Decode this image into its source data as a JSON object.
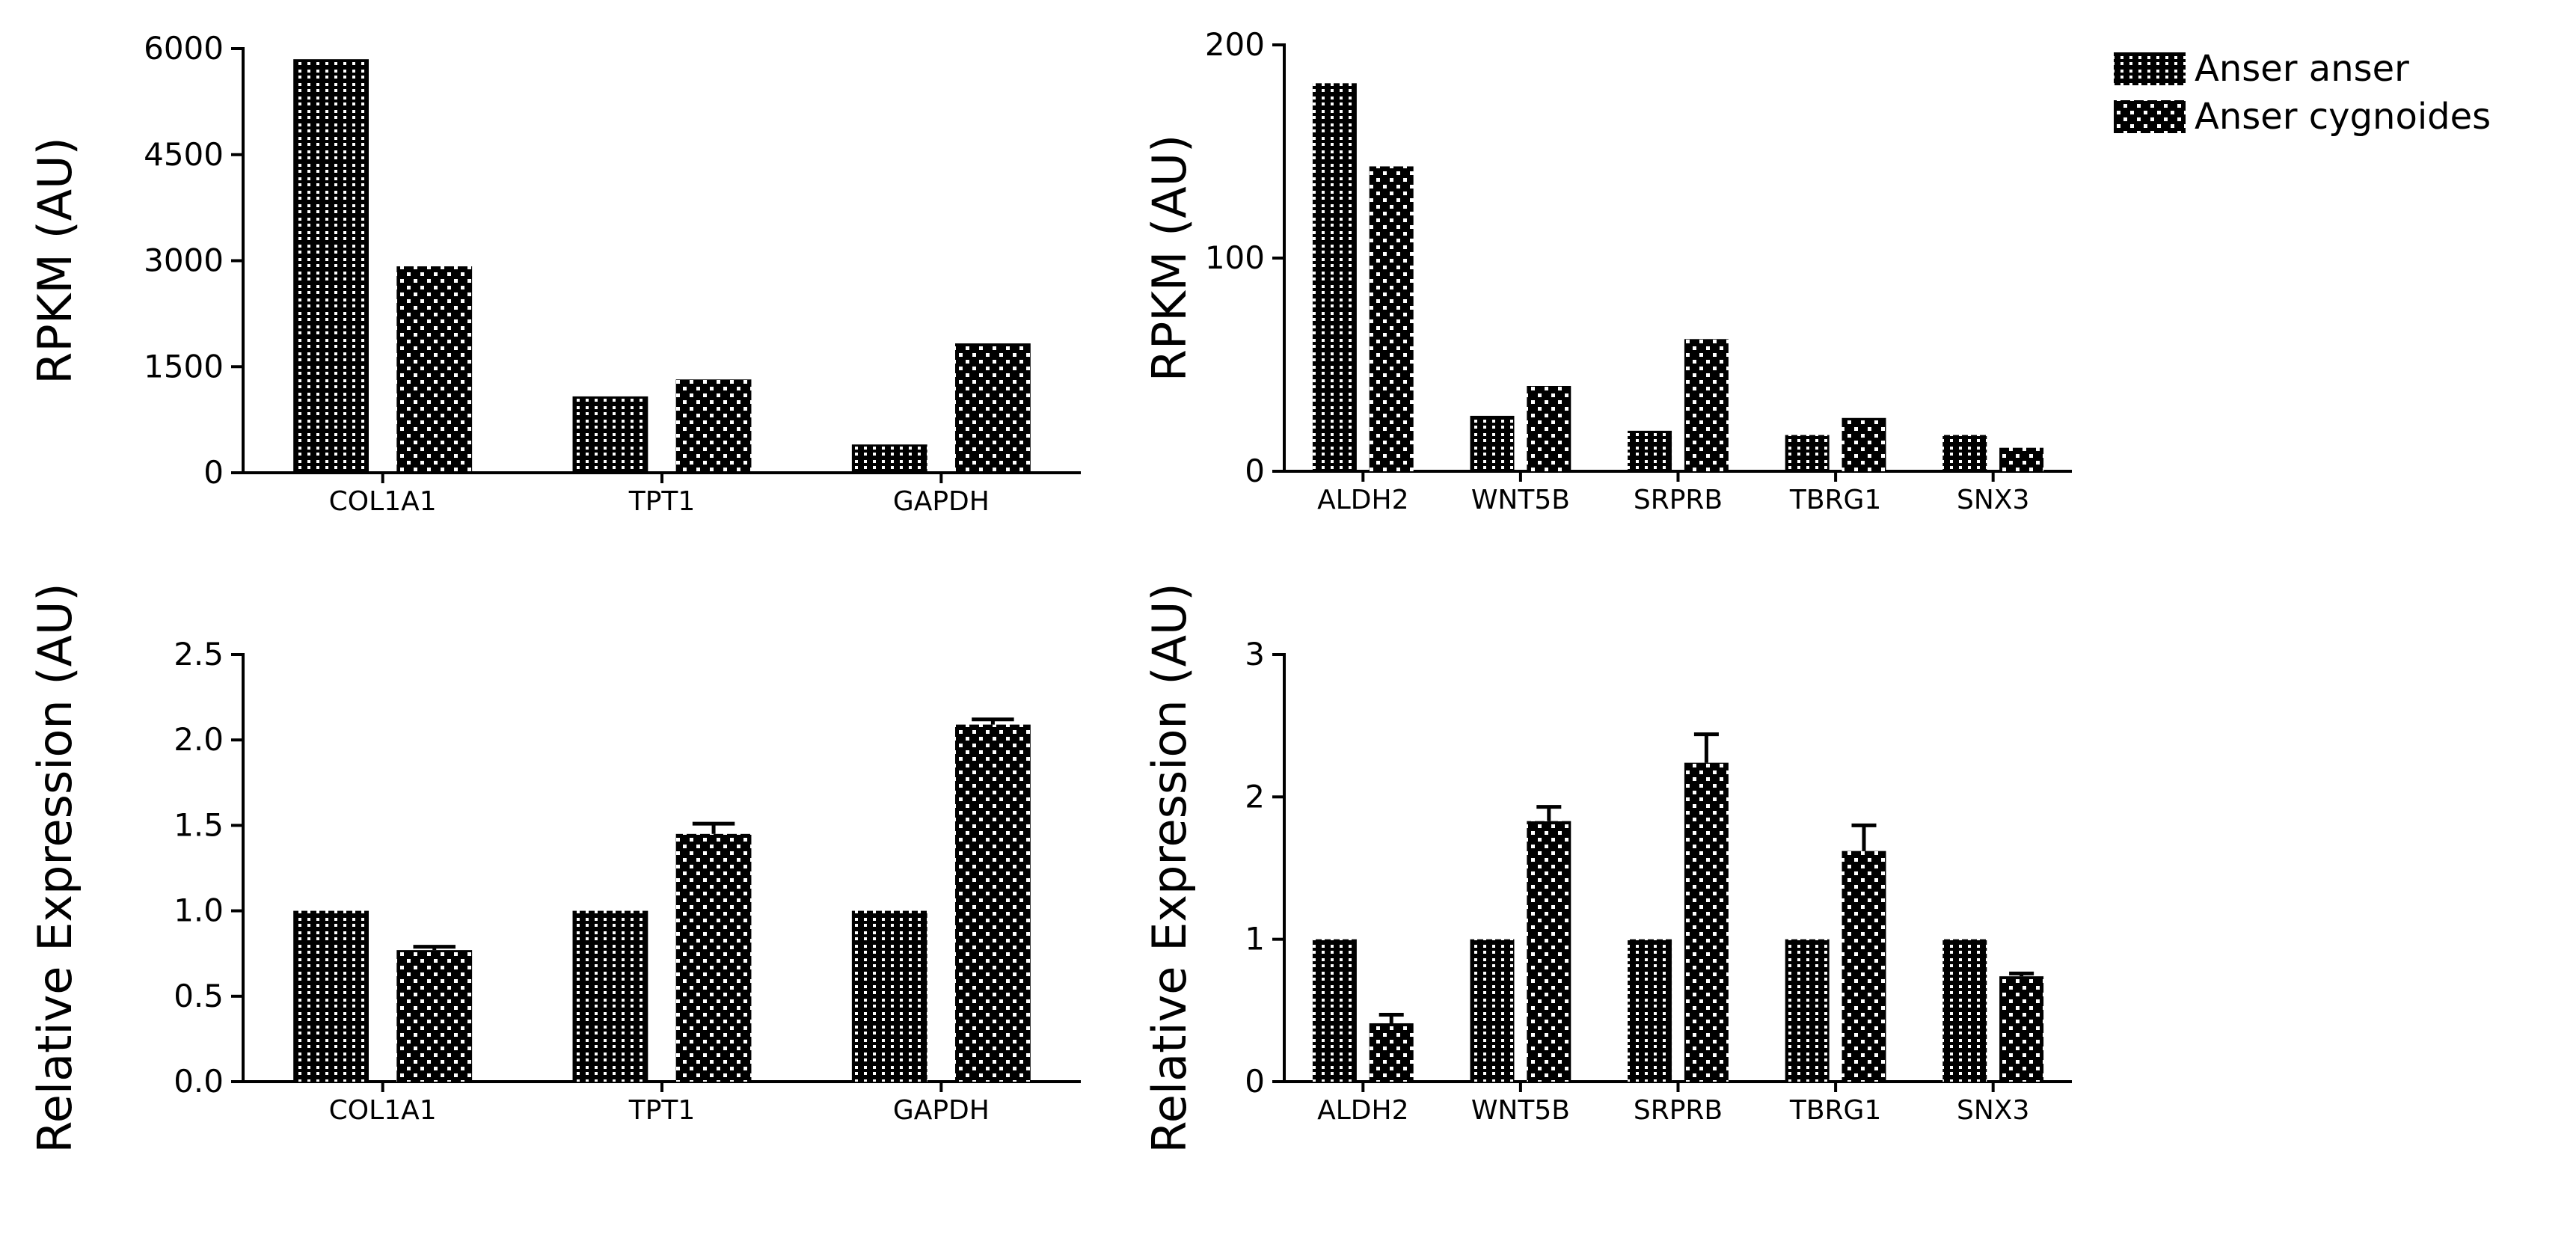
{
  "legend": {
    "series_a": "Anser anser",
    "series_b": "Anser cygnoides"
  },
  "colors": {
    "bar_fill": "#000000",
    "dot": "#ffffff",
    "axis": "#000000",
    "background": "#ffffff"
  },
  "chart_data": [
    {
      "type": "bar",
      "ylabel": "RPKM (AU)",
      "categories": [
        "COL1A1",
        "TPT1",
        "GAPDH"
      ],
      "ylim": [
        0,
        6000
      ],
      "yticks": [
        0,
        1500,
        3000,
        4500,
        6000
      ],
      "ytick_labels": [
        "0",
        "1500",
        "3000",
        "4500",
        "6000"
      ],
      "series": [
        {
          "name": "Anser anser",
          "values": [
            5850,
            1080,
            400
          ]
        },
        {
          "name": "Anser cygnoides",
          "values": [
            2920,
            1320,
            1830
          ]
        }
      ]
    },
    {
      "type": "bar",
      "ylabel": "RPKM (AU)",
      "categories": [
        "ALDH2",
        "WNT5B",
        "SRPRB",
        "TBRG1",
        "SNX3"
      ],
      "ylim": [
        0,
        200
      ],
      "yticks": [
        0,
        100,
        200
      ],
      "ytick_labels": [
        "0",
        "100",
        "200"
      ],
      "series": [
        {
          "name": "Anser anser",
          "values": [
            182,
            26,
            19,
            17,
            17
          ]
        },
        {
          "name": "Anser cygnoides",
          "values": [
            143,
            40,
            62,
            25,
            11
          ]
        }
      ]
    },
    {
      "type": "bar",
      "ylabel": "Relative Expression (AU)",
      "categories": [
        "COL1A1",
        "TPT1",
        "GAPDH"
      ],
      "ylim": [
        0,
        2.5
      ],
      "yticks": [
        0,
        0.5,
        1.0,
        1.5,
        2.0,
        2.5
      ],
      "ytick_labels": [
        "0.0",
        "0.5",
        "1.0",
        "1.5",
        "2.0",
        "2.5"
      ],
      "series": [
        {
          "name": "Anser anser",
          "values": [
            1.0,
            1.0,
            1.0
          ],
          "errors": [
            0,
            0,
            0
          ]
        },
        {
          "name": "Anser cygnoides",
          "values": [
            0.77,
            1.45,
            2.09
          ],
          "errors": [
            0.02,
            0.06,
            0.03
          ]
        }
      ]
    },
    {
      "type": "bar",
      "ylabel": "Relative Expression (AU)",
      "categories": [
        "ALDH2",
        "WNT5B",
        "SRPRB",
        "TBRG1",
        "SNX3"
      ],
      "ylim": [
        0,
        3
      ],
      "yticks": [
        0,
        1,
        2,
        3
      ],
      "ytick_labels": [
        "0",
        "1",
        "2",
        "3"
      ],
      "series": [
        {
          "name": "Anser anser",
          "values": [
            1.0,
            1.0,
            1.0,
            1.0,
            1.0
          ],
          "errors": [
            0,
            0,
            0,
            0,
            0
          ]
        },
        {
          "name": "Anser cygnoides",
          "values": [
            0.41,
            1.83,
            2.24,
            1.62,
            0.74
          ],
          "errors": [
            0.06,
            0.1,
            0.2,
            0.18,
            0.02
          ]
        }
      ]
    }
  ]
}
